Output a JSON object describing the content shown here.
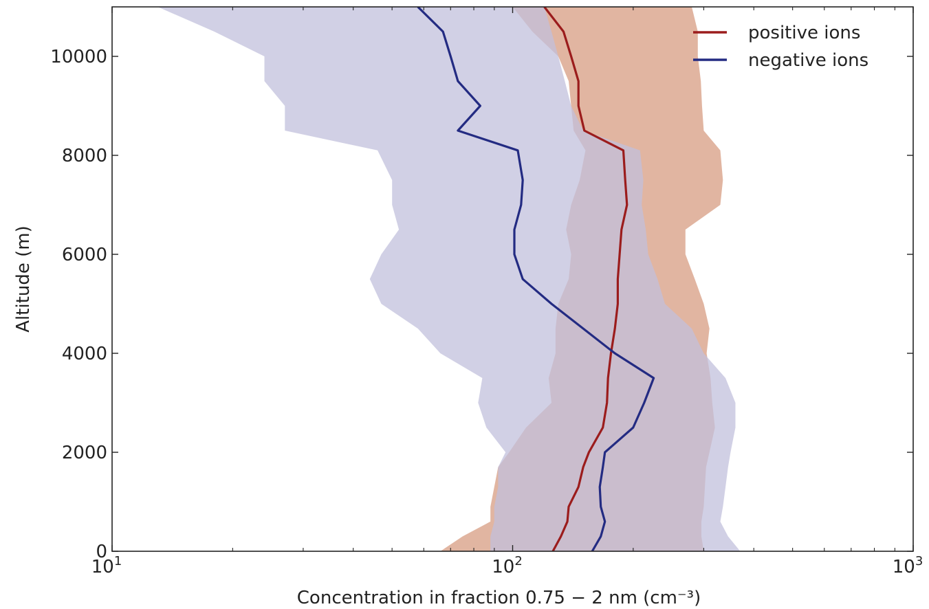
{
  "chart_data": {
    "type": "line",
    "xlabel": "Concentration in fraction 0.75 − 2 nm (cm⁻³)",
    "ylabel": "Altitude (m)",
    "xscale": "log",
    "xlim": [
      10,
      1000
    ],
    "ylim": [
      0,
      11000
    ],
    "x_tick_labels": [
      {
        "value": 10,
        "base": "10",
        "exp": "1"
      },
      {
        "value": 100,
        "base": "10",
        "exp": "2"
      },
      {
        "value": 1000,
        "base": "10",
        "exp": "3"
      }
    ],
    "y_ticks": [
      0,
      2000,
      4000,
      6000,
      8000,
      10000
    ],
    "y_tick_labels": [
      "0",
      "2000",
      "4000",
      "6000",
      "8000",
      "10000"
    ],
    "legend_position": "top-right",
    "grid": false,
    "series": [
      {
        "name": "positive ions",
        "color": "#9b1c1c",
        "band_color": "#d9a38a",
        "altitude": [
          0,
          300,
          600,
          900,
          1300,
          1700,
          2000,
          2500,
          3000,
          3500,
          4000,
          4500,
          5000,
          5500,
          6000,
          6500,
          7000,
          7500,
          8100,
          8500,
          9000,
          9500,
          10000,
          10500,
          11000
        ],
        "median": [
          126,
          132,
          137,
          138,
          146,
          150,
          155,
          168,
          172,
          173,
          176,
          180,
          183,
          183,
          185,
          187,
          193,
          191,
          189,
          151,
          146,
          146,
          140,
          134,
          120
        ],
        "lower": [
          66,
          75,
          88,
          88,
          90,
          92,
          98,
          108,
          125,
          123,
          128,
          128,
          130,
          138,
          140,
          136,
          140,
          147,
          152,
          142,
          140,
          138,
          130,
          112,
          100
        ],
        "upper": [
          300,
          296,
          296,
          300,
          302,
          304,
          310,
          320,
          315,
          312,
          305,
          310,
          300,
          285,
          270,
          270,
          330,
          335,
          330,
          300,
          297,
          295,
          290,
          290,
          280
        ]
      },
      {
        "name": "negative ions",
        "color": "#232b82",
        "band_color": "#c2c0dc",
        "altitude": [
          0,
          300,
          600,
          900,
          1300,
          1700,
          2000,
          2500,
          3000,
          3500,
          4000,
          4500,
          5000,
          5500,
          6000,
          6500,
          7000,
          7500,
          8100,
          8500,
          9000,
          9500,
          10000,
          10500,
          11000
        ],
        "median": [
          158,
          166,
          170,
          166,
          165,
          168,
          170,
          200,
          213,
          225,
          180,
          150,
          125,
          106,
          101,
          101,
          105,
          106,
          103,
          73,
          83,
          73,
          70,
          67,
          58
        ],
        "lower": [
          88,
          88,
          90,
          90,
          92,
          92,
          96,
          86,
          82,
          84,
          66,
          58,
          47,
          44,
          47,
          52,
          50,
          50,
          46,
          27,
          27,
          24,
          24,
          18,
          13
        ],
        "upper": [
          370,
          345,
          330,
          335,
          340,
          345,
          350,
          360,
          360,
          340,
          300,
          280,
          240,
          230,
          218,
          215,
          210,
          212,
          208,
          150,
          140,
          135,
          130,
          125,
          120
        ]
      }
    ]
  }
}
